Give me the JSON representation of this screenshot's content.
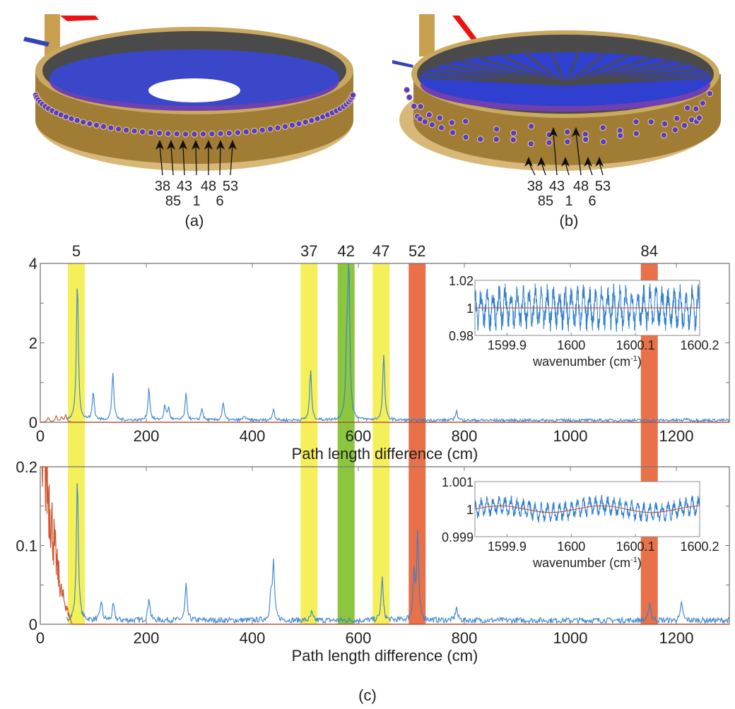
{
  "panel_a": {
    "caption": "(a)",
    "labels_top": [
      "38",
      "43",
      "48",
      "53"
    ],
    "labels_bottom": [
      "85",
      "1",
      "6"
    ]
  },
  "panel_b": {
    "caption": "(b)",
    "labels_top": [
      "38",
      "43",
      "48",
      "53"
    ],
    "labels_bottom": [
      "85",
      "1",
      "6"
    ]
  },
  "panel_c_caption": "(c)",
  "colors": {
    "blue": "#2f7fd0",
    "red": "#c9451c",
    "yellow": "#f5ef5a",
    "green": "#8cc63f",
    "orange": "#e8714a",
    "ring": "#b48a3c",
    "disc": "#3344cc"
  },
  "chart_data": [
    {
      "type": "line",
      "xlabel": "Path length difference (cm)",
      "ylabel": "",
      "xlim": [
        0,
        1300
      ],
      "ylim": [
        0,
        4
      ],
      "xticks": [
        "0",
        "200",
        "400",
        "600",
        "800",
        "1000",
        "1200"
      ],
      "yticks": [
        "0",
        "2",
        "4"
      ],
      "bands": [
        {
          "label": "5",
          "range": [
            52,
            84
          ],
          "color": "yellow"
        },
        {
          "label": "37",
          "range": [
            491,
            523
          ],
          "color": "yellow"
        },
        {
          "label": "42",
          "range": [
            561,
            593
          ],
          "color": "green"
        },
        {
          "label": "47",
          "range": [
            627,
            659
          ],
          "color": "yellow"
        },
        {
          "label": "52",
          "range": [
            695,
            727
          ],
          "color": "orange"
        },
        {
          "label": "84",
          "range": [
            1133,
            1165
          ],
          "color": "orange"
        }
      ],
      "series": [
        {
          "color": "blue",
          "baseline": 0.05,
          "peaks": [
            [
              70,
              3.5
            ],
            [
              100,
              0.7
            ],
            [
              137,
              1.2
            ],
            [
              205,
              0.8
            ],
            [
              235,
              0.35
            ],
            [
              242,
              0.3
            ],
            [
              275,
              0.65
            ],
            [
              305,
              0.3
            ],
            [
              345,
              0.45
            ],
            [
              385,
              0.12
            ],
            [
              440,
              0.3
            ],
            [
              510,
              1.25
            ],
            [
              578,
              1.5
            ],
            [
              582,
              4.0
            ],
            [
              648,
              1.65
            ],
            [
              785,
              0.25
            ],
            [
              1220,
              0.05
            ]
          ]
        },
        {
          "color": "red",
          "baseline": 0.0,
          "peaks": [
            [
              15,
              0.12
            ],
            [
              30,
              0.15
            ],
            [
              40,
              0.12
            ],
            [
              48,
              0.18
            ]
          ]
        }
      ],
      "inset": {
        "xlabel": "wavenumber (cm",
        "xlabel_sup": "-1",
        "xlabel_end": ")",
        "xlim": [
          1599.85,
          1600.2
        ],
        "ylim": [
          0.98,
          1.02
        ],
        "xticks": [
          "1599.9",
          "1600",
          "1600.1",
          "1600.2"
        ],
        "yticks": [
          "0.98",
          "1",
          "1.02"
        ],
        "fringe_amplitude": 0.018,
        "fringe_period": 0.0094
      }
    },
    {
      "type": "line",
      "xlabel": "Path length difference (cm)",
      "ylabel": "",
      "xlim": [
        0,
        1300
      ],
      "ylim": [
        0,
        0.2
      ],
      "xticks": [
        "0",
        "200",
        "400",
        "600",
        "800",
        "1000",
        "1200"
      ],
      "yticks": [
        "0",
        "0.1",
        "0.2"
      ],
      "series": [
        {
          "color": "blue",
          "baseline": 0.005,
          "peaks": [
            [
              70,
              0.18
            ],
            [
              115,
              0.025
            ],
            [
              138,
              0.02
            ],
            [
              205,
              0.03
            ],
            [
              275,
              0.045
            ],
            [
              440,
              0.072
            ],
            [
              435,
              0.03
            ],
            [
              512,
              0.01
            ],
            [
              645,
              0.055
            ],
            [
              705,
              0.06
            ],
            [
              712,
              0.11
            ],
            [
              785,
              0.017
            ],
            [
              1150,
              0.024
            ],
            [
              1210,
              0.023
            ]
          ]
        },
        {
          "color": "red",
          "decay": [
            [
              0,
              0.2
            ],
            [
              10,
              0.2
            ],
            [
              20,
              0.14
            ],
            [
              30,
              0.08
            ],
            [
              40,
              0.04
            ],
            [
              50,
              0.02
            ],
            [
              60,
              0.0
            ]
          ]
        }
      ],
      "inset": {
        "xlabel": "wavenumber (cm",
        "xlabel_sup": "-1",
        "xlabel_end": ")",
        "xlim": [
          1599.85,
          1600.2
        ],
        "ylim": [
          0.999,
          1.001
        ],
        "xticks": [
          "1599.9",
          "1600",
          "1600.1",
          "1600.2"
        ],
        "yticks": [
          "0.999",
          "1",
          "1.001"
        ],
        "fringe_amplitude": 0.0004,
        "fringe_period": 0.0094
      }
    }
  ]
}
